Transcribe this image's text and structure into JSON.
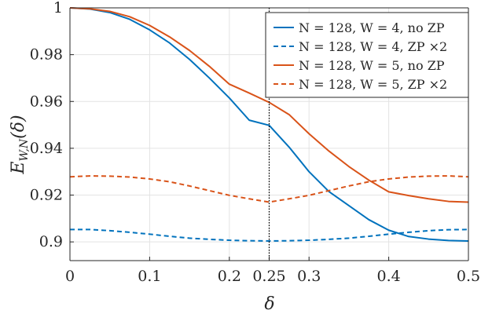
{
  "chart_data": {
    "type": "line",
    "xlabel": "δ",
    "ylabel": "E_{W,N}(δ)",
    "ylabel_main": "E",
    "ylabel_sub": "W,N",
    "ylabel_arg": "(δ)",
    "xlim": [
      0,
      0.5
    ],
    "ylim": [
      0.892,
      1.0
    ],
    "x_ticks": [
      0,
      0.1,
      0.2,
      0.25,
      0.3,
      0.4,
      0.5
    ],
    "x_tick_labels": [
      "0",
      "0.1",
      "0.2",
      "0.25",
      "0.3",
      "0.4",
      "0.5"
    ],
    "y_ticks": [
      0.9,
      0.92,
      0.94,
      0.96,
      0.98,
      1.0
    ],
    "y_tick_labels": [
      "0.9",
      "0.92",
      "0.94",
      "0.96",
      "0.98",
      "1"
    ],
    "grid": true,
    "legend_position": "top-right",
    "reference_line": {
      "x": 0.25,
      "style": "dotted",
      "color": "#000000"
    },
    "series": [
      {
        "name": "N = 128,  W = 4, no ZP",
        "color": "#0072BD",
        "dash": "solid",
        "x": [
          0,
          0.025,
          0.05,
          0.075,
          0.1,
          0.125,
          0.15,
          0.175,
          0.2,
          0.225,
          0.25,
          0.275,
          0.3,
          0.325,
          0.35,
          0.375,
          0.4,
          0.425,
          0.45,
          0.475,
          0.5
        ],
        "y": [
          1.0,
          0.9995,
          0.998,
          0.9951,
          0.9906,
          0.985,
          0.978,
          0.97,
          0.9615,
          0.952,
          0.9498,
          0.9405,
          0.93,
          0.9215,
          0.9155,
          0.9095,
          0.905,
          0.9023,
          0.9012,
          0.9006,
          0.9004
        ]
      },
      {
        "name": "N = 128,  W = 4, ZP ×2",
        "color": "#0072BD",
        "dash": "dashed",
        "x": [
          0,
          0.025,
          0.05,
          0.075,
          0.1,
          0.125,
          0.15,
          0.175,
          0.2,
          0.225,
          0.25,
          0.275,
          0.3,
          0.325,
          0.35,
          0.375,
          0.4,
          0.425,
          0.45,
          0.475,
          0.5
        ],
        "y": [
          0.9053,
          0.9053,
          0.9048,
          0.9041,
          0.9033,
          0.9024,
          0.9016,
          0.9011,
          0.9007,
          0.9005,
          0.9004,
          0.9005,
          0.9007,
          0.9011,
          0.9016,
          0.9024,
          0.9033,
          0.9041,
          0.9048,
          0.9052,
          0.9053
        ]
      },
      {
        "name": "N = 128,  W = 5, no ZP",
        "color": "#D95319",
        "dash": "solid",
        "x": [
          0,
          0.025,
          0.05,
          0.075,
          0.1,
          0.125,
          0.15,
          0.175,
          0.2,
          0.225,
          0.25,
          0.275,
          0.3,
          0.325,
          0.35,
          0.375,
          0.4,
          0.425,
          0.45,
          0.475,
          0.5
        ],
        "y": [
          1.0,
          0.9996,
          0.9985,
          0.9962,
          0.9925,
          0.9876,
          0.9818,
          0.975,
          0.9674,
          0.9636,
          0.9596,
          0.9544,
          0.9462,
          0.9388,
          0.9322,
          0.9264,
          0.9214,
          0.9198,
          0.9184,
          0.9173,
          0.917
        ]
      },
      {
        "name": "N = 128,  W = 5, ZP ×2",
        "color": "#D95319",
        "dash": "dashed",
        "x": [
          0,
          0.025,
          0.05,
          0.075,
          0.1,
          0.125,
          0.15,
          0.175,
          0.2,
          0.225,
          0.25,
          0.275,
          0.3,
          0.325,
          0.35,
          0.375,
          0.4,
          0.425,
          0.45,
          0.475,
          0.5
        ],
        "y": [
          0.9278,
          0.9282,
          0.9281,
          0.9277,
          0.9269,
          0.9257,
          0.9239,
          0.9219,
          0.9199,
          0.9184,
          0.917,
          0.9184,
          0.9199,
          0.9219,
          0.9239,
          0.9257,
          0.9269,
          0.9277,
          0.9281,
          0.9282,
          0.9278
        ]
      }
    ]
  }
}
